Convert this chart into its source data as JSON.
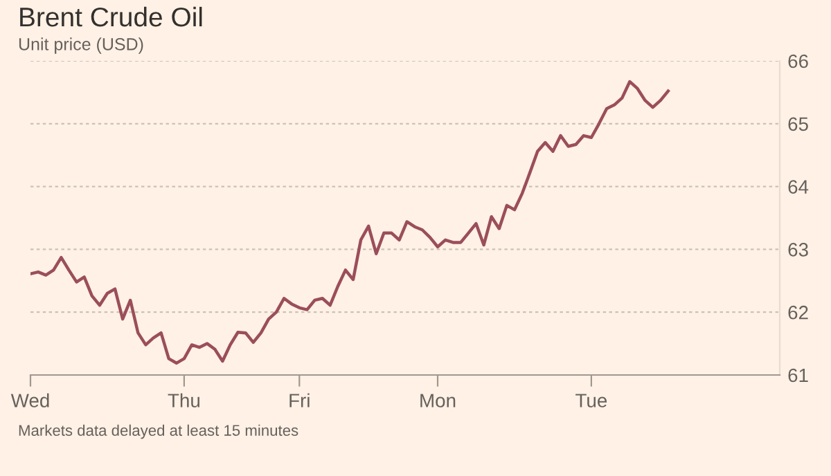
{
  "chart_data": {
    "type": "line",
    "title": "Brent Crude Oil",
    "subtitle": "Unit price (USD)",
    "annotations": [
      "Markets data delayed at least 15 minutes"
    ],
    "categories": [
      "Wed",
      null,
      null,
      null,
      null,
      null,
      null,
      null,
      null,
      null,
      null,
      null,
      null,
      null,
      null,
      null,
      null,
      null,
      null,
      null,
      "Thu",
      null,
      null,
      null,
      null,
      null,
      null,
      null,
      null,
      null,
      null,
      null,
      null,
      null,
      null,
      "Fri",
      null,
      null,
      null,
      null,
      null,
      null,
      null,
      null,
      null,
      null,
      null,
      null,
      null,
      null,
      null,
      null,
      null,
      "Mon",
      null,
      null,
      null,
      null,
      null,
      null,
      null,
      null,
      null,
      null,
      null,
      null,
      null,
      null,
      null,
      null,
      null,
      null,
      null,
      "Tue",
      null,
      null,
      null,
      null,
      null,
      null,
      null,
      null,
      null,
      null
    ],
    "series": [
      {
        "color": "#9b4e5a",
        "values": [
          62.61,
          62.64,
          62.59,
          62.67,
          62.87,
          62.67,
          62.48,
          62.56,
          62.26,
          62.11,
          62.3,
          62.37,
          61.89,
          62.19,
          61.67,
          61.48,
          61.59,
          61.67,
          61.26,
          61.19,
          61.26,
          61.48,
          61.44,
          61.5,
          61.41,
          61.22,
          61.48,
          61.68,
          61.67,
          61.52,
          61.67,
          61.89,
          62.0,
          62.22,
          62.13,
          62.07,
          62.04,
          62.19,
          62.22,
          62.11,
          62.41,
          62.67,
          62.52,
          63.15,
          63.37,
          62.93,
          63.26,
          63.26,
          63.15,
          63.44,
          63.36,
          63.31,
          63.19,
          63.04,
          63.15,
          63.11,
          63.11,
          63.26,
          63.41,
          63.07,
          63.52,
          63.33,
          63.7,
          63.63,
          63.89,
          64.22,
          64.56,
          64.7,
          64.56,
          64.81,
          64.64,
          64.67,
          64.81,
          64.78,
          65.0,
          65.24,
          65.3,
          65.41,
          65.67,
          65.56,
          65.37,
          65.26,
          65.37,
          65.52
        ]
      }
    ],
    "ylim": [
      61,
      66
    ],
    "yticks": [
      61,
      62,
      63,
      64,
      65,
      66
    ],
    "grid": "y",
    "marker": "none",
    "line_style": "solid"
  }
}
